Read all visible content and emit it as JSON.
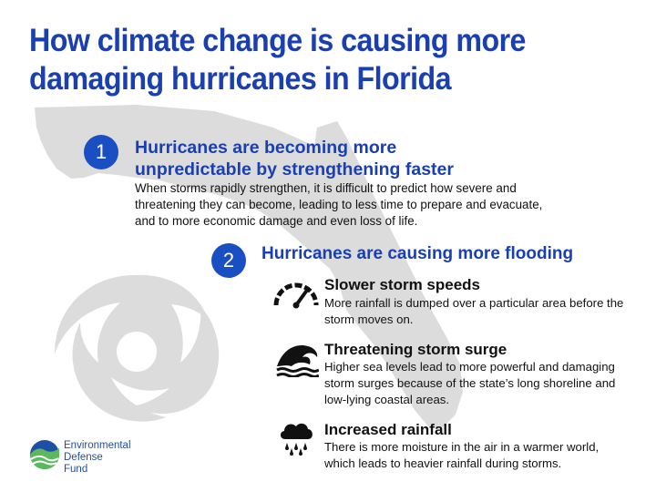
{
  "title": "How climate change is causing more damaging hurricanes in Florida",
  "section1": {
    "number": "1",
    "heading": "Hurricanes are becoming more unpredictable by strengthening faster",
    "body": "When storms rapidly strengthen, it is difficult to predict how severe and threatening they can become, leading to less time to prepare and evacuate, and to more economic damage and even loss of life."
  },
  "section2": {
    "number": "2",
    "heading": "Hurricanes are causing more flooding",
    "items": [
      {
        "icon": "speedometer-icon",
        "title": "Slower storm speeds",
        "body": "More rainfall is dumped over a particular area before the storm moves on."
      },
      {
        "icon": "wave-icon",
        "title": "Threatening storm surge",
        "body": "Higher sea levels lead to more powerful and damaging storm surges because of the state’s long shoreline and low-lying coastal areas."
      },
      {
        "icon": "rain-cloud-icon",
        "title": "Increased rainfall",
        "body": "There is more moisture in the air in a warmer world, which leads to heavier rainfall during storms."
      }
    ]
  },
  "logo": {
    "line1": "Environmental",
    "line2": "Defense",
    "line3": "Fund",
    "colors": {
      "blue": "#1e4fa5",
      "green": "#5cb85c"
    }
  },
  "colors": {
    "title_blue": "#1a3fb0",
    "circle_blue": "#1a4fc4",
    "silhouette_gray": "#dcdcdc"
  }
}
